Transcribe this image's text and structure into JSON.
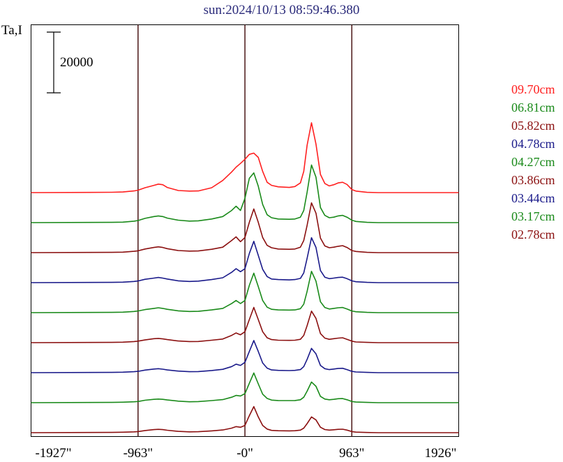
{
  "chart_data": {
    "type": "line",
    "title": "sun:2024/10/13 08:59:46.380",
    "ylabel": "Ta,I",
    "scale_bar": "20000",
    "x_ticks": [
      -1927,
      -963,
      0,
      963,
      1926
    ],
    "x_tick_labels": [
      "-1927\"",
      "-963\"",
      "-0\"",
      "963\"",
      "1926\""
    ],
    "xlim": [
      -1927,
      1926
    ],
    "vertical_lines": [
      -963,
      0,
      963
    ],
    "profile_x": [
      -1927,
      -1200,
      -1100,
      -1000,
      -963,
      -900,
      -820,
      -780,
      -740,
      -700,
      -600,
      -500,
      -420,
      -300,
      -200,
      -120,
      -80,
      -40,
      0,
      40,
      80,
      120,
      160,
      200,
      240,
      300,
      400,
      450,
      500,
      530,
      560,
      600,
      640,
      680,
      720,
      760,
      800,
      840,
      880,
      920,
      963,
      1000,
      1100,
      1200,
      1926
    ],
    "series": [
      {
        "name": "09.70cm",
        "color": "#ff2020",
        "values": [
          0.0,
          0.06,
          0.1,
          0.28,
          0.4,
          0.8,
          1.2,
          1.4,
          1.3,
          0.85,
          0.35,
          0.25,
          0.28,
          0.8,
          2.0,
          3.4,
          4.2,
          4.8,
          5.5,
          6.3,
          6.5,
          5.8,
          3.5,
          1.7,
          1.2,
          0.95,
          0.85,
          1.0,
          1.6,
          3.5,
          7.8,
          11.5,
          8.0,
          3.0,
          1.5,
          1.1,
          1.3,
          1.6,
          1.7,
          1.35,
          0.5,
          0.25,
          0.05,
          0.0,
          0.0
        ]
      },
      {
        "name": "06.81cm",
        "color": "#1a8a1a",
        "values": [
          0.0,
          0.05,
          0.08,
          0.24,
          0.35,
          0.7,
          1.0,
          1.1,
          1.0,
          0.75,
          0.4,
          0.25,
          0.3,
          0.6,
          1.0,
          2.0,
          2.7,
          2.0,
          4.0,
          7.3,
          8.2,
          6.0,
          3.0,
          1.3,
          0.8,
          0.6,
          0.55,
          0.6,
          0.9,
          2.0,
          5.0,
          9.5,
          7.5,
          2.5,
          1.2,
          0.8,
          0.9,
          1.1,
          1.2,
          0.9,
          0.4,
          0.2,
          0.05,
          0.0,
          0.0
        ]
      },
      {
        "name": "05.82cm",
        "color": "#8b1010",
        "values": [
          0.0,
          0.05,
          0.08,
          0.22,
          0.3,
          0.6,
          0.85,
          0.95,
          0.85,
          0.65,
          0.35,
          0.25,
          0.28,
          0.55,
          0.9,
          2.0,
          2.6,
          1.8,
          2.5,
          5.0,
          7.2,
          5.0,
          2.5,
          1.2,
          0.8,
          0.6,
          0.55,
          0.6,
          0.9,
          2.0,
          4.5,
          8.2,
          6.5,
          2.4,
          1.1,
          0.8,
          0.9,
          1.05,
          1.15,
          0.85,
          0.35,
          0.2,
          0.05,
          0.0,
          0.0
        ]
      },
      {
        "name": "04.78cm",
        "color": "#1a1a8a",
        "values": [
          0.0,
          0.05,
          0.08,
          0.2,
          0.28,
          0.55,
          0.75,
          0.85,
          0.75,
          0.6,
          0.3,
          0.2,
          0.25,
          0.5,
          0.8,
          1.7,
          2.3,
          1.8,
          2.3,
          4.8,
          6.8,
          4.5,
          2.2,
          1.0,
          0.6,
          0.5,
          0.45,
          0.5,
          0.7,
          1.6,
          4.0,
          7.4,
          5.8,
          2.0,
          0.9,
          0.65,
          0.75,
          0.85,
          0.9,
          0.65,
          0.3,
          0.15,
          0.05,
          0.0,
          0.0
        ]
      },
      {
        "name": "04.27cm",
        "color": "#1a8a1a",
        "values": [
          0.0,
          0.05,
          0.08,
          0.2,
          0.28,
          0.5,
          0.7,
          0.8,
          0.7,
          0.55,
          0.3,
          0.2,
          0.22,
          0.45,
          0.7,
          1.5,
          2.0,
          1.5,
          2.0,
          4.5,
          6.5,
          4.3,
          2.0,
          0.9,
          0.55,
          0.45,
          0.42,
          0.45,
          0.65,
          1.4,
          3.5,
          6.8,
          5.2,
          1.8,
          0.85,
          0.6,
          0.7,
          0.8,
          0.85,
          0.6,
          0.28,
          0.15,
          0.05,
          0.0,
          0.0
        ]
      },
      {
        "name": "03.86cm",
        "color": "#8b1010",
        "values": [
          0.0,
          0.05,
          0.08,
          0.18,
          0.25,
          0.45,
          0.65,
          0.7,
          0.62,
          0.5,
          0.28,
          0.18,
          0.2,
          0.4,
          0.6,
          1.2,
          1.6,
          1.3,
          1.8,
          3.8,
          5.8,
          3.8,
          1.8,
          0.8,
          0.5,
          0.4,
          0.38,
          0.4,
          0.55,
          1.2,
          2.8,
          5.2,
          4.0,
          1.5,
          0.75,
          0.55,
          0.65,
          0.75,
          0.8,
          0.55,
          0.25,
          0.12,
          0.05,
          0.0,
          0.0
        ]
      },
      {
        "name": "03.44cm",
        "color": "#1a1a8a",
        "values": [
          0.0,
          0.05,
          0.08,
          0.16,
          0.22,
          0.42,
          0.6,
          0.65,
          0.58,
          0.45,
          0.26,
          0.16,
          0.18,
          0.36,
          0.55,
          1.0,
          1.4,
          1.2,
          1.7,
          3.5,
          5.3,
          3.5,
          1.6,
          0.75,
          0.45,
          0.38,
          0.35,
          0.38,
          0.5,
          1.0,
          2.2,
          4.0,
          3.1,
          1.2,
          0.65,
          0.5,
          0.6,
          0.7,
          0.72,
          0.5,
          0.22,
          0.12,
          0.05,
          0.0,
          0.0
        ]
      },
      {
        "name": "03.17cm",
        "color": "#1a8a1a",
        "values": [
          0.0,
          0.05,
          0.08,
          0.15,
          0.2,
          0.4,
          0.55,
          0.6,
          0.55,
          0.45,
          0.25,
          0.15,
          0.18,
          0.34,
          0.5,
          0.9,
          1.2,
          1.1,
          1.5,
          3.2,
          4.9,
          3.1,
          1.4,
          0.7,
          0.42,
          0.36,
          0.34,
          0.36,
          0.48,
          0.9,
          1.9,
          3.4,
          2.7,
          1.05,
          0.6,
          0.48,
          0.55,
          0.65,
          0.68,
          0.48,
          0.2,
          0.1,
          0.05,
          0.0,
          0.0
        ]
      },
      {
        "name": "02.78cm",
        "color": "#8b1010",
        "values": [
          0.0,
          0.05,
          0.08,
          0.14,
          0.18,
          0.36,
          0.5,
          0.55,
          0.5,
          0.4,
          0.22,
          0.14,
          0.16,
          0.3,
          0.45,
          0.75,
          1.0,
          0.9,
          1.2,
          2.8,
          4.3,
          2.6,
          1.2,
          0.6,
          0.38,
          0.32,
          0.3,
          0.32,
          0.42,
          0.75,
          1.5,
          2.6,
          2.1,
          0.9,
          0.52,
          0.42,
          0.48,
          0.55,
          0.58,
          0.42,
          0.18,
          0.09,
          0.04,
          0.0,
          0.0
        ]
      }
    ]
  }
}
